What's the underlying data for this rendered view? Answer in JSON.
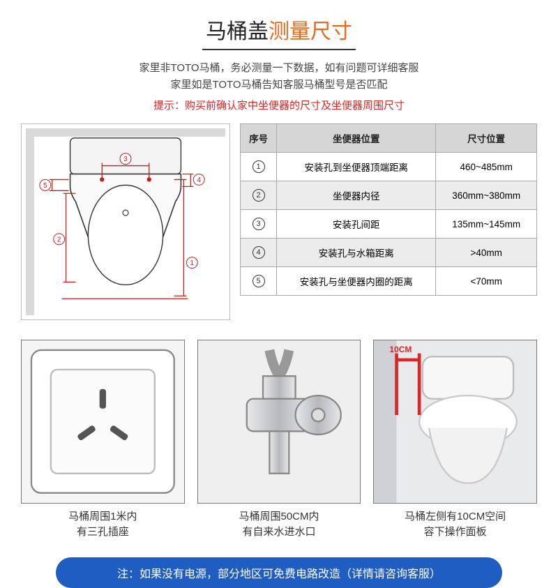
{
  "title": {
    "part1": "马桶盖",
    "part2": "测量尺寸",
    "color1": "#222222",
    "color2": "#e8691e"
  },
  "subtitle_lines": [
    "家里非TOTO马桶，务必测量一下数据，如有问题可详细客服",
    "家里如是TOTO马桶告知客服马桶型号是否匹配"
  ],
  "warning": "提示：购买前确认家中坐便器的尺寸及坐便器周围尺寸",
  "table": {
    "columns": [
      "序号",
      "坐便器位置",
      "尺寸位置"
    ],
    "rows": [
      [
        "1",
        "安装孔到坐便器顶端距离",
        "460~485mm"
      ],
      [
        "2",
        "坐便器内径",
        "360mm~380mm"
      ],
      [
        "3",
        "安装孔间距",
        "135mm~145mm"
      ],
      [
        "4",
        "安装孔与水箱距离",
        ">40mm"
      ],
      [
        "5",
        "安装孔与坐便器内圈的距离",
        "<70mm"
      ]
    ],
    "header_bg": "#d6d6d6",
    "row_alt_bg": "#ececec",
    "border_color": "#a8a8a8"
  },
  "diagram": {
    "labels": [
      "1",
      "2",
      "3",
      "4",
      "5"
    ],
    "line_color": "#c41e1e",
    "toilet_outline_color": "#333333"
  },
  "cards": [
    {
      "type": "outlet",
      "line1": "马桶周围1米内",
      "line2": "有三孔插座"
    },
    {
      "type": "valve",
      "line1": "马桶周围50CM内",
      "line2": "有自来水进水口"
    },
    {
      "type": "toilet",
      "line1": "马桶左侧有10CM空间",
      "line2": "容下操作面板",
      "badge": "10CM"
    }
  ],
  "footer": "注：如果没有电源，部分地区可免费电路改造（详情请咨询客服）",
  "footer_bg": "#1f5dc3"
}
